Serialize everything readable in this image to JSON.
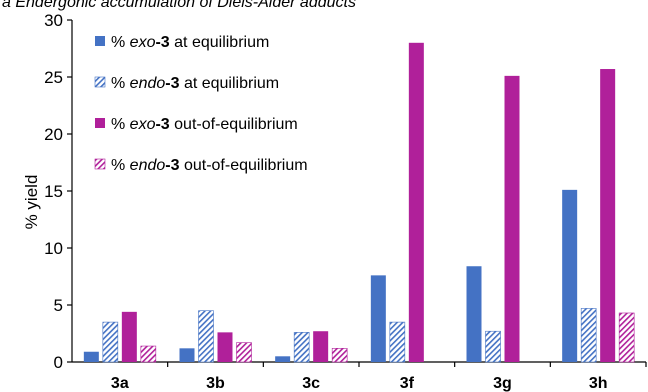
{
  "chart_data": {
    "type": "bar",
    "title": "a Endergonic accumulation of Diels-Alder adducts",
    "ylabel": "% yield",
    "xlabel": "",
    "ylim": [
      0,
      30
    ],
    "yticks": [
      "0",
      "5",
      "10",
      "15",
      "20",
      "25",
      "30"
    ],
    "categories": [
      "3a",
      "3b",
      "3c",
      "3f",
      "3g",
      "3h"
    ],
    "legend_position": "top-left",
    "grid": false,
    "series": [
      {
        "name": "% exo-3 at equilibrium",
        "legend": {
          "prefix": "% ",
          "italic": "exo",
          "bold": "-3",
          "suffix": " at equilibrium"
        },
        "color": "#4472c4",
        "pattern": "solid",
        "values": [
          0.9,
          1.2,
          0.5,
          7.6,
          8.4,
          15.1
        ]
      },
      {
        "name": "% endo-3 at equilibrium",
        "legend": {
          "prefix": "% ",
          "italic": "endo",
          "bold": "-3",
          "suffix": " at equilibrium"
        },
        "color": "#4472c4",
        "pattern": "hatch",
        "values": [
          3.5,
          4.5,
          2.6,
          3.5,
          2.7,
          4.7
        ]
      },
      {
        "name": "% exo-3 out-of-equilibrium",
        "legend": {
          "prefix": "% ",
          "italic": "exo",
          "bold": "-3",
          "suffix": " out-of-equilibrium"
        },
        "color": "#b0209a",
        "pattern": "solid",
        "values": [
          4.4,
          2.6,
          2.7,
          28.0,
          25.1,
          25.7
        ]
      },
      {
        "name": "% endo-3 out-of-equilibrium",
        "legend": {
          "prefix": "% ",
          "italic": "endo",
          "bold": "-3",
          "suffix": " out-of-equilibrium"
        },
        "color": "#b0209a",
        "pattern": "hatch",
        "values": [
          1.4,
          1.7,
          1.2,
          null,
          null,
          4.3
        ]
      }
    ]
  }
}
